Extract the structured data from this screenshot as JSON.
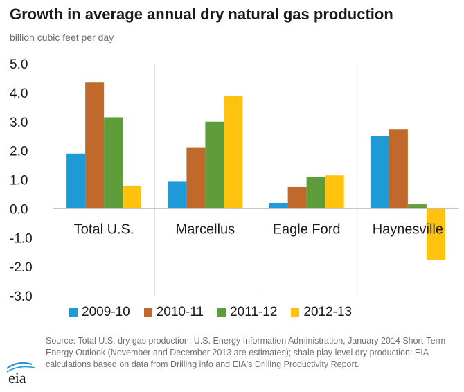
{
  "title": "Growth in average annual dry natural gas production",
  "subtitle": "billion cubic feet per day",
  "source": "Source: Total U.S. dry gas production: U.S. Energy Information Administration, January 2014 Short-Term Energy Outlook (November and December 2013 are estimates); shale play level dry production: EIA calculations based on data from Drilling info and EIA's Drilling Productivity Report.",
  "logo_text": "eia",
  "colors": {
    "2009-10": "#1e9ad6",
    "2010-11": "#c0692b",
    "2011-12": "#5f9c3a",
    "2012-13": "#ffc20e"
  },
  "chart_data": {
    "type": "bar",
    "title": "Growth in average annual dry natural gas production",
    "ylabel": "billion cubic feet per day",
    "xlabel": "",
    "ylim": [
      -3.0,
      5.0
    ],
    "yticks": [
      "5.0",
      "4.0",
      "3.0",
      "2.0",
      "1.0",
      "0.0",
      "-1.0",
      "-2.0",
      "-3.0"
    ],
    "grid": "vertical separators between categories",
    "legend_position": "bottom",
    "categories": [
      "Total U.S.",
      "Marcellus",
      "Eagle Ford",
      "Haynesville"
    ],
    "series": [
      {
        "name": "2009-10",
        "color": "#1e9ad6",
        "values": [
          1.9,
          0.93,
          0.2,
          2.5
        ]
      },
      {
        "name": "2010-11",
        "color": "#c0692b",
        "values": [
          4.35,
          2.12,
          0.75,
          2.75
        ]
      },
      {
        "name": "2011-12",
        "color": "#5f9c3a",
        "values": [
          3.15,
          3.0,
          1.1,
          0.15
        ]
      },
      {
        "name": "2012-13",
        "color": "#ffc20e",
        "values": [
          0.8,
          3.9,
          1.15,
          -1.78
        ]
      }
    ]
  }
}
